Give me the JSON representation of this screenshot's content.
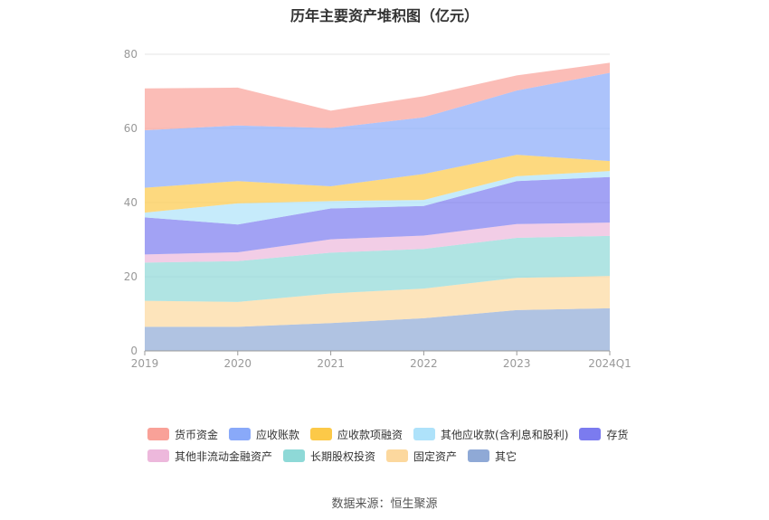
{
  "chart_data": {
    "type": "area",
    "stacked": true,
    "title": "历年主要资产堆积图（亿元）",
    "categories": [
      "2019",
      "2020",
      "2021",
      "2022",
      "2023",
      "2024Q1"
    ],
    "ylim": [
      0,
      80
    ],
    "yticks": [
      "0",
      "20",
      "40",
      "60",
      "80"
    ],
    "grid": true,
    "legend_position": "bottom",
    "series": [
      {
        "name": "其它",
        "color": "#8FA9D6",
        "values": [
          6.5,
          6.5,
          7.5,
          8.8,
          11,
          11.5
        ]
      },
      {
        "name": "固定资产",
        "color": "#FCD89E",
        "values": [
          7,
          6.7,
          8,
          8,
          8.7,
          8.7
        ]
      },
      {
        "name": "长期股权投资",
        "color": "#8ED9D7",
        "values": [
          10.3,
          11,
          11,
          10.7,
          10.8,
          10.8
        ]
      },
      {
        "name": "其他非流动金融资产",
        "color": "#EDB8DC",
        "values": [
          2.2,
          2.4,
          3.6,
          3.6,
          3.7,
          3.6
        ]
      },
      {
        "name": "存货",
        "color": "#7B7BEF",
        "values": [
          10,
          7.5,
          8.3,
          8,
          11.6,
          12.3
        ]
      },
      {
        "name": "其他应收款(含利息和股利)",
        "color": "#AEE2FA",
        "values": [
          1.3,
          5.7,
          2,
          1.6,
          1.3,
          1.6
        ]
      },
      {
        "name": "应收款项融资",
        "color": "#FCC948",
        "values": [
          6.7,
          6,
          4,
          7,
          5.8,
          2.7
        ]
      },
      {
        "name": "应收账款",
        "color": "#89A9F9",
        "values": [
          15.5,
          15,
          15.7,
          15.3,
          17.3,
          23.8
        ]
      },
      {
        "name": "货币资金",
        "color": "#F9A198",
        "values": [
          11.3,
          10.2,
          4.7,
          5.7,
          4.1,
          2.7
        ]
      }
    ],
    "legend_order": [
      "货币资金",
      "应收账款",
      "应收款项融资",
      "其他应收款(含利息和股利)",
      "存货",
      "其他非流动金融资产",
      "长期股权投资",
      "固定资产",
      "其它"
    ]
  },
  "source": "数据来源：恒生聚源"
}
